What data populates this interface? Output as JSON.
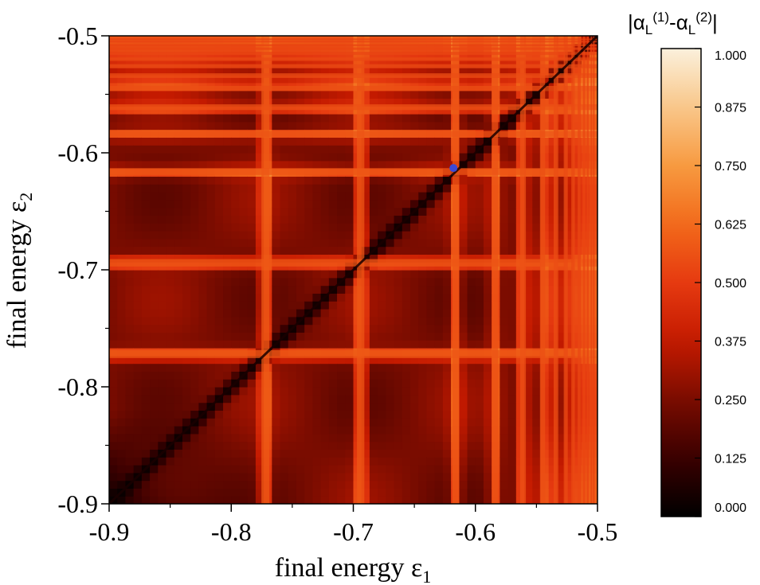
{
  "chart_data": {
    "type": "heatmap",
    "title": "",
    "xlabel": {
      "text": "final energy ε",
      "sub": "1"
    },
    "ylabel": {
      "text": "final energy ε",
      "sub": "2"
    },
    "xlim": [
      -0.9,
      -0.5
    ],
    "ylim": [
      -0.9,
      -0.5
    ],
    "x_ticks": [
      -0.9,
      -0.8,
      -0.7,
      -0.6,
      -0.5
    ],
    "x_tick_labels": [
      "-0.9",
      "-0.8",
      "-0.7",
      "-0.6",
      "-0.5"
    ],
    "y_ticks": [
      -0.9,
      -0.8,
      -0.7,
      -0.6,
      -0.5
    ],
    "y_tick_labels": [
      "-0.9",
      "-0.8",
      "-0.7",
      "-0.6",
      "-0.5"
    ],
    "resonances": [
      -0.772,
      -0.694,
      -0.616,
      -0.584,
      -0.561,
      -0.545,
      -0.534,
      -0.526,
      -0.52,
      -0.515,
      -0.511,
      -0.508,
      -0.505,
      -0.503
    ],
    "marker": {
      "x": -0.618,
      "y": -0.613,
      "color": "#3b49d6"
    },
    "colorbar": {
      "title": "|α_L^(1)-α_L^(2)|",
      "title_parts": {
        "open": "|α",
        "sub1": "L",
        "sup1": "(1)",
        "mid": "-α",
        "sub2": "L",
        "sup2": "(2)",
        "close": "|"
      },
      "min": 0.0,
      "max": 1.0,
      "ticks": [
        0.0,
        0.125,
        0.25,
        0.375,
        0.5,
        0.625,
        0.75,
        0.875,
        1.0
      ],
      "tick_labels": [
        "0.000",
        "0.125",
        "0.250",
        "0.375",
        "0.500",
        "0.625",
        "0.750",
        "0.875",
        "1.000"
      ],
      "colormap": [
        "#000000",
        "#3a0000",
        "#7a0c00",
        "#c41a00",
        "#e63a10",
        "#f26a1a",
        "#f79a40",
        "#f9c78a",
        "#fbf0dc"
      ]
    }
  }
}
